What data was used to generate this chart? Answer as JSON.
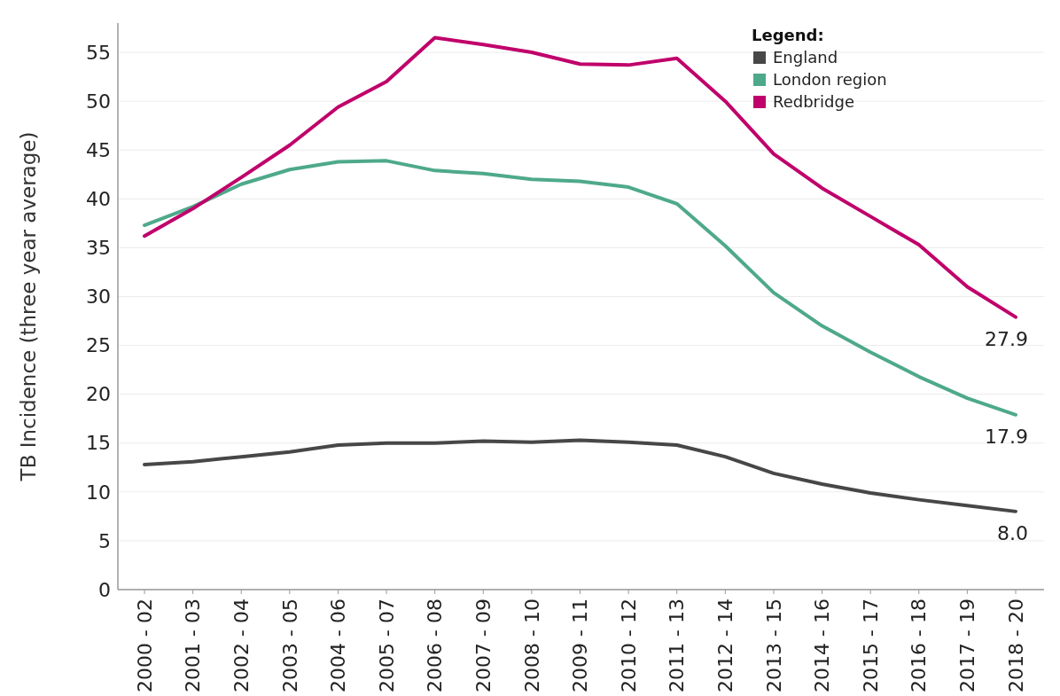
{
  "chart_data": {
    "type": "line",
    "ylabel": "TB Incidence (three year average)",
    "legend_title": "Legend:",
    "legend": "top right",
    "grid": "y",
    "categories": [
      "2000 - 02",
      "2001 - 03",
      "2002 - 04",
      "2003 - 05",
      "2004 - 06",
      "2005 - 07",
      "2006 - 08",
      "2007 - 09",
      "2008 - 10",
      "2009 - 11",
      "2010 - 12",
      "2011 - 13",
      "2012 - 14",
      "2013 - 15",
      "2014 - 16",
      "2015 - 17",
      "2016 - 18",
      "2017 - 19",
      "2018 - 20"
    ],
    "ylim": [
      0,
      58
    ],
    "yticks": [
      0,
      5,
      10,
      15,
      20,
      25,
      30,
      35,
      40,
      45,
      50,
      55
    ],
    "series": [
      {
        "name": "England",
        "color": "#474747",
        "values": [
          12.8,
          13.1,
          13.6,
          14.1,
          14.8,
          15.0,
          15.0,
          15.2,
          15.1,
          15.3,
          15.1,
          14.8,
          13.6,
          11.9,
          10.8,
          9.9,
          9.2,
          8.6,
          8.0
        ],
        "value_labels": [
          null,
          null,
          null,
          null,
          null,
          null,
          null,
          null,
          null,
          null,
          null,
          null,
          null,
          null,
          null,
          null,
          null,
          null,
          "8.0"
        ]
      },
      {
        "name": "London region",
        "color": "#4ea98b",
        "values": [
          37.3,
          39.2,
          41.5,
          43.0,
          43.8,
          43.9,
          42.9,
          42.6,
          42.0,
          41.8,
          41.2,
          39.5,
          35.2,
          30.4,
          27.0,
          24.3,
          21.8,
          19.6,
          17.9
        ],
        "value_labels": [
          null,
          null,
          null,
          null,
          null,
          null,
          null,
          null,
          null,
          null,
          null,
          null,
          null,
          null,
          null,
          null,
          null,
          null,
          "17.9"
        ]
      },
      {
        "name": "Redbridge",
        "color": "#c0006b",
        "values": [
          36.2,
          39.0,
          42.2,
          45.5,
          49.4,
          52.0,
          56.5,
          55.8,
          55.0,
          53.8,
          53.7,
          54.4,
          50.0,
          44.6,
          41.1,
          38.2,
          35.3,
          31.0,
          27.9
        ],
        "value_labels": [
          null,
          null,
          null,
          null,
          null,
          null,
          null,
          null,
          null,
          null,
          null,
          null,
          null,
          null,
          null,
          null,
          null,
          null,
          "27.9"
        ]
      }
    ]
  }
}
